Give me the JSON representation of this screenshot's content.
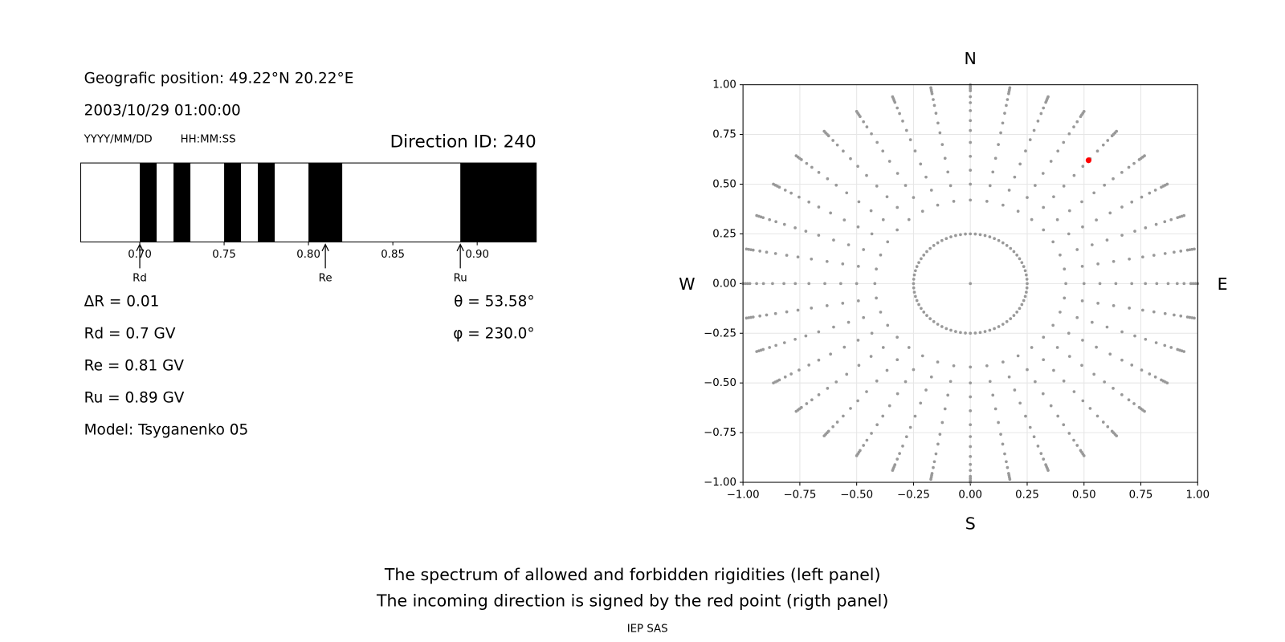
{
  "info": {
    "position": "Geografic position: 49.22°N 20.22°E",
    "datetime": "2003/10/29 01:00:00",
    "date_format": "YYYY/MM/DD",
    "time_format": "HH:MM:SS",
    "direction_id": "Direction ID: 240",
    "delta_r": "ΔR = 0.01",
    "rd": "Rd = 0.7 GV",
    "re": "Re = 0.81 GV",
    "ru": "Ru = 0.89 GV",
    "model": "Model: Tsyganenko 05",
    "theta": "θ = 53.58°",
    "phi": "φ = 230.0°",
    "caption": [
      "The spectrum of allowed and forbidden rigidities (left panel)",
      "The incoming direction is signed by the red point (rigth panel)"
    ],
    "credit": "IEP SAS"
  },
  "chart_data": [
    {
      "type": "spectrum",
      "color": "#000000",
      "xlim": [
        0.665,
        0.935
      ],
      "xticks": [
        {
          "value": 0.7,
          "label": "0.70"
        },
        {
          "value": 0.75,
          "label": "0.75"
        },
        {
          "value": 0.8,
          "label": "0.80"
        },
        {
          "value": 0.85,
          "label": "0.85"
        },
        {
          "value": 0.9,
          "label": "0.90"
        }
      ],
      "bands": [
        [
          0.7,
          0.71
        ],
        [
          0.72,
          0.73
        ],
        [
          0.75,
          0.76
        ],
        [
          0.77,
          0.78
        ],
        [
          0.8,
          0.82
        ],
        [
          0.89,
          0.935
        ]
      ],
      "markers": [
        {
          "label": "Rd",
          "value": 0.7
        },
        {
          "label": "Re",
          "value": 0.81
        },
        {
          "label": "Ru",
          "value": 0.89
        }
      ]
    },
    {
      "type": "scatter",
      "grid": true,
      "axis_labels": {
        "top": "N",
        "bottom": "S",
        "left": "W",
        "right": "E"
      },
      "xlim": [
        -1,
        1
      ],
      "ylim": [
        -1,
        1
      ],
      "xticks": [
        {
          "value": -1,
          "label": "−1.00"
        },
        {
          "value": -0.75,
          "label": "−0.75"
        },
        {
          "value": -0.5,
          "label": "−0.50"
        },
        {
          "value": -0.25,
          "label": "−0.25"
        },
        {
          "value": 0,
          "label": "0.00"
        },
        {
          "value": 0.25,
          "label": "0.25"
        },
        {
          "value": 0.5,
          "label": "0.50"
        },
        {
          "value": 0.75,
          "label": "0.75"
        },
        {
          "value": 1,
          "label": "1.00"
        }
      ],
      "yticks": [
        {
          "value": -1,
          "label": "−1.00"
        },
        {
          "value": -0.75,
          "label": "−0.75"
        },
        {
          "value": -0.5,
          "label": "−0.50"
        },
        {
          "value": -0.25,
          "label": "−0.25"
        },
        {
          "value": 0,
          "label": "0.00"
        },
        {
          "value": 0.25,
          "label": "0.25"
        },
        {
          "value": 0.5,
          "label": "0.50"
        },
        {
          "value": 0.75,
          "label": "0.75"
        },
        {
          "value": 1,
          "label": "1.00"
        }
      ],
      "series": [
        {
          "shape": "rays",
          "color": "#999999",
          "radii": [
            0.42,
            0.5,
            0.57,
            0.64,
            0.71,
            0.77,
            0.82,
            0.87,
            0.91,
            0.94,
            0.97,
            0.98,
            0.99,
            1.0
          ],
          "azimuths": [
            0,
            10,
            20,
            30,
            40,
            50,
            60,
            70,
            80,
            90,
            100,
            110,
            120,
            130,
            140,
            150,
            160,
            170,
            180,
            190,
            200,
            210,
            220,
            230,
            240,
            250,
            260,
            270,
            280,
            290,
            300,
            310,
            320,
            330,
            340,
            350
          ]
        },
        {
          "shape": "ring",
          "color": "#999999",
          "radius": 0.25,
          "azimuths": [
            0,
            5,
            10,
            15,
            20,
            25,
            30,
            35,
            40,
            45,
            50,
            55,
            60,
            65,
            70,
            75,
            80,
            85,
            90,
            95,
            100,
            105,
            110,
            115,
            120,
            125,
            130,
            135,
            140,
            145,
            150,
            155,
            160,
            165,
            170,
            175,
            180,
            185,
            190,
            195,
            200,
            205,
            210,
            215,
            220,
            225,
            230,
            235,
            240,
            245,
            250,
            255,
            260,
            265,
            270,
            275,
            280,
            285,
            290,
            295,
            300,
            305,
            310,
            315,
            320,
            325,
            330,
            335,
            340,
            345,
            350,
            355
          ]
        },
        {
          "shape": "points",
          "color": "#999999",
          "x": [
            0
          ],
          "y": [
            0
          ]
        },
        {
          "shape": "points",
          "color": "#ff0000",
          "x": [
            0.52
          ],
          "y": [
            0.62
          ]
        }
      ]
    }
  ]
}
